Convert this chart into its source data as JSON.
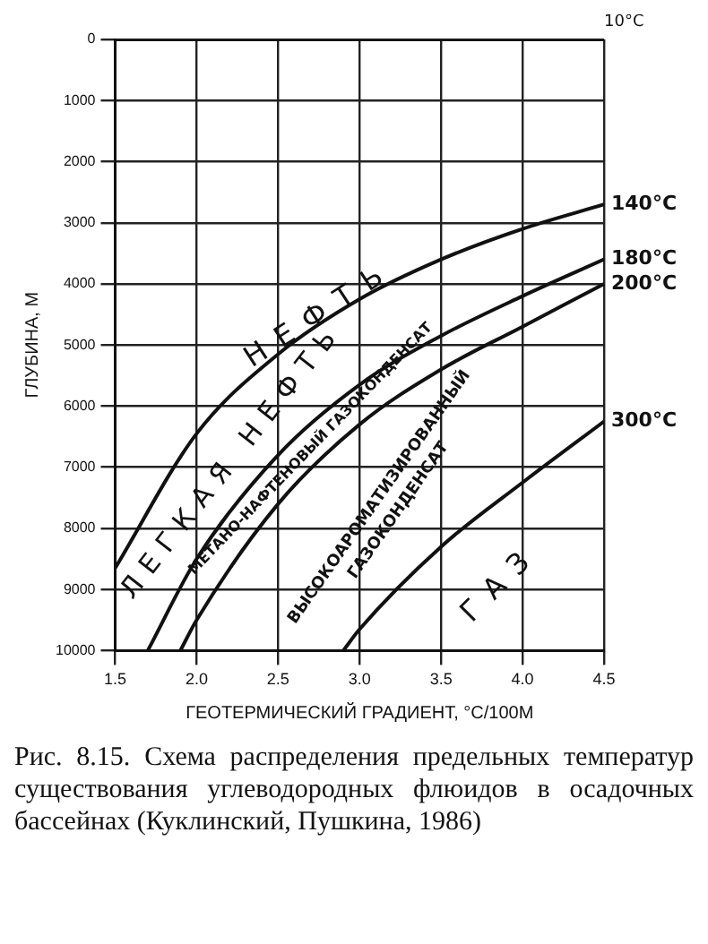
{
  "chart_data": {
    "type": "line",
    "xlabel": "ГЕОТЕРМИЧЕСКИЙ ГРАДИЕНТ, °С/100М",
    "ylabel": "ГЛУБИНА, М",
    "xlim": [
      1.5,
      4.5
    ],
    "ylim": [
      10000,
      0
    ],
    "xticks": [
      1.5,
      {
        "value": 2,
        "label": "2.0"
      },
      2.5,
      {
        "value": 3,
        "label": "3.0"
      },
      3.5,
      {
        "value": 4,
        "label": "4.0"
      },
      4.5
    ],
    "yticks": [
      0,
      1000,
      2000,
      3000,
      4000,
      5000,
      6000,
      7000,
      8000,
      9000,
      10000
    ],
    "grid": true,
    "legend": false,
    "marker": "none",
    "line_style": "solid",
    "series": [
      {
        "name": "10°C",
        "color": "#111111",
        "x": [
          1.5,
          4.5
        ],
        "values": [
          0,
          0
        ]
      },
      {
        "name": "140°C",
        "color": "#111111",
        "x": [
          1.5,
          2.0,
          2.5,
          3.0,
          3.5,
          4.0,
          4.5
        ],
        "values": [
          8650,
          6450,
          5150,
          4250,
          3600,
          3100,
          2700
        ]
      },
      {
        "name": "180°C",
        "color": "#111111",
        "x": [
          1.7,
          2.0,
          2.5,
          3.0,
          3.5,
          4.0,
          4.5
        ],
        "values": [
          10000,
          8500,
          6800,
          5650,
          4850,
          4200,
          3600
        ]
      },
      {
        "name": "200°C",
        "color": "#111111",
        "x": [
          1.9,
          2.0,
          2.5,
          3.0,
          3.5,
          4.0,
          4.5
        ],
        "values": [
          10000,
          9500,
          7600,
          6300,
          5400,
          4700,
          4000
        ]
      },
      {
        "name": "300°C",
        "color": "#111111",
        "x": [
          2.9,
          3.0,
          3.5,
          4.0,
          4.5
        ],
        "values": [
          10000,
          9650,
          8300,
          7250,
          6250
        ]
      }
    ],
    "annotations": [
      "НЕФТЬ",
      "ЛЕГКАЯ НЕФТЬ",
      "МЕТАНО-НАФТЕНОВЫЙ ГАЗОКОНДЕНСАТ",
      "ВЫСОКОАРОМАТИЗИРОВАННЫЙ ГАЗОКОНДЕНСАТ",
      "ГАЗ",
      "Рис. 8.15. Схема распределения предельных температур существования углеводородных флюидов в осадочных бассейнах (Куклинский, Пушкина, 1986)"
    ]
  }
}
